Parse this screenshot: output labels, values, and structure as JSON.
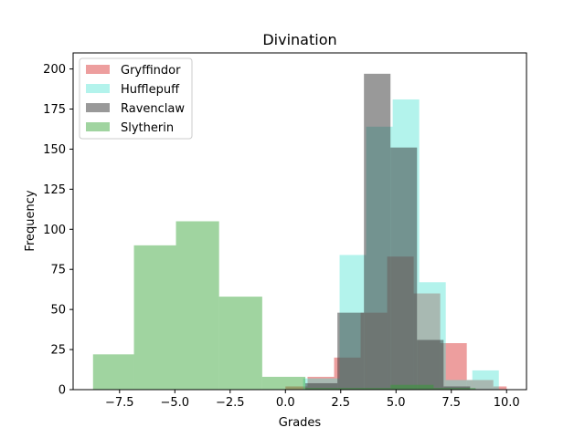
{
  "chart_data": {
    "type": "histogram",
    "title": "Divination",
    "xlabel": "Grades",
    "ylabel": "Frequency",
    "xlim": [
      -9.6,
      10.9
    ],
    "ylim": [
      0,
      210
    ],
    "xticks": [
      -7.5,
      -5.0,
      -2.5,
      0.0,
      2.5,
      5.0,
      7.5,
      10.0
    ],
    "xtick_labels": [
      "−7.5",
      "−5.0",
      "−2.5",
      "0.0",
      "2.5",
      "5.0",
      "7.5",
      "10.0"
    ],
    "yticks": [
      0,
      25,
      50,
      75,
      100,
      125,
      150,
      175,
      200
    ],
    "ytick_labels": [
      "0",
      "25",
      "50",
      "75",
      "100",
      "125",
      "150",
      "175",
      "200"
    ],
    "grid": false,
    "legend_position": "top-left",
    "series": [
      {
        "name": "Gryffindor",
        "color": "#d62728",
        "opacity": 0.45,
        "bin_edges": [
          0.0,
          1.0,
          2.2,
          3.4,
          4.6,
          5.8,
          7.0,
          8.2,
          9.4,
          10.0
        ],
        "counts": [
          2,
          8,
          20,
          48,
          83,
          60,
          29,
          6,
          2
        ]
      },
      {
        "name": "Hufflepuff",
        "color": "#40e0d0",
        "opacity": 0.4,
        "bin_edges": [
          0.8,
          2.45,
          3.65,
          4.85,
          6.05,
          7.25,
          8.45,
          9.65
        ],
        "counts": [
          7,
          84,
          164,
          181,
          67,
          6,
          12
        ]
      },
      {
        "name": "Ravenclaw",
        "color": "#333333",
        "opacity": 0.5,
        "bin_edges": [
          0.9,
          2.35,
          3.55,
          4.75,
          5.95,
          7.15,
          8.35
        ],
        "counts": [
          4,
          48,
          197,
          151,
          31,
          2
        ]
      },
      {
        "name": "Slytherin",
        "color": "#2ca02c",
        "opacity": 0.45,
        "bin_edges": [
          -8.7,
          -6.85,
          -4.95,
          -3.0,
          -1.05,
          0.9,
          2.85,
          4.75,
          6.7,
          8.6
        ],
        "counts": [
          22,
          90,
          105,
          58,
          8,
          1,
          1,
          3,
          1
        ]
      }
    ]
  }
}
